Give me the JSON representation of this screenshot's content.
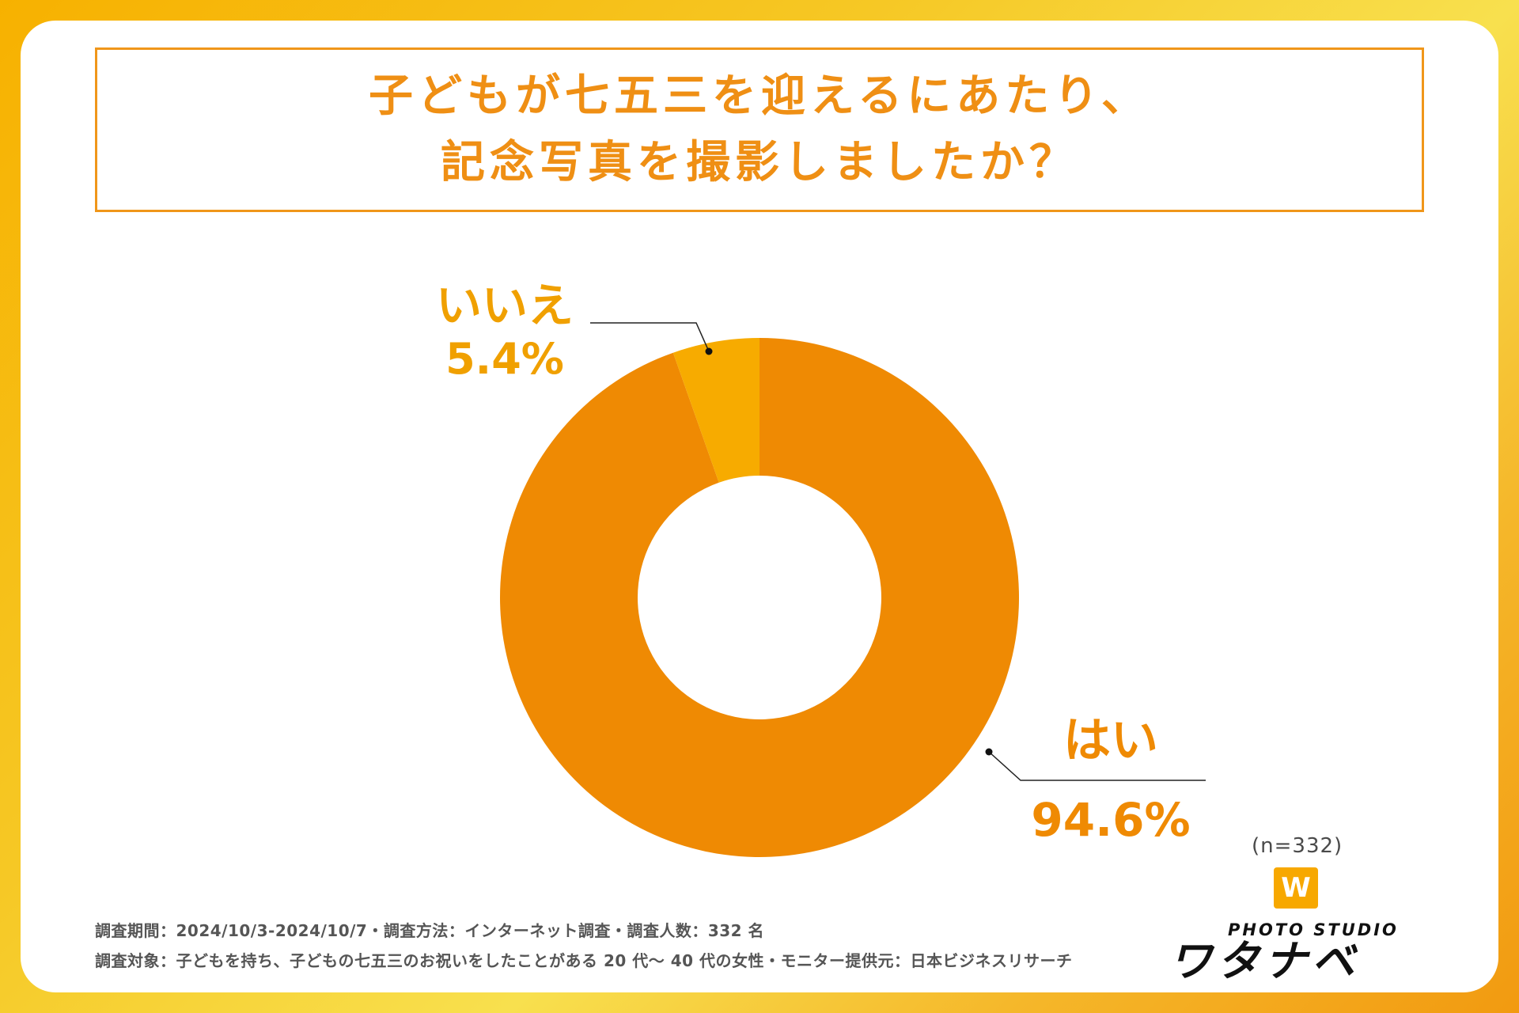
{
  "title": {
    "line1": "子どもが七五三を迎えるにあたり、",
    "line2": "記念写真を撮影しましたか？"
  },
  "colors": {
    "yes": "#ef8a03",
    "no": "#f7ab00",
    "title": "#ef8f14",
    "label": "#f0a000"
  },
  "chart_data": {
    "type": "pie",
    "title": "子どもが七五三を迎えるにあたり、記念写真を撮影しましたか？",
    "categories": [
      "はい",
      "いいえ"
    ],
    "values": [
      94.6,
      5.4
    ],
    "unit": "%",
    "sample_size": "(n=332)",
    "slices": [
      {
        "label": "はい",
        "value": 94.6,
        "value_text": "94.6%"
      },
      {
        "label": "いいえ",
        "value": 5.4,
        "value_text": "5.4%"
      }
    ]
  },
  "footer": {
    "line1": "調査期間：2024/10/3-2024/10/7・調査方法：インターネット調査・調査人数：332 名",
    "line2": "調査対象：子どもを持ち、子どもの七五三のお祝いをしたことがある 20 代〜 40 代の女性・モニター提供元：日本ビジネスリサーチ"
  },
  "logo": {
    "mark": "W",
    "sub": "PHOTO STUDIO",
    "main": "ワタナベ"
  }
}
